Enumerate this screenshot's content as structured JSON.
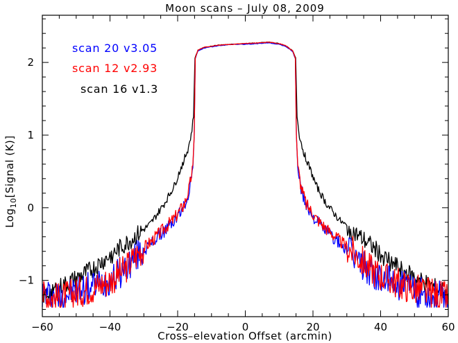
{
  "chart_data": {
    "type": "line",
    "title": "Moon scans  –  July 08, 2009",
    "xlabel": "Cross–elevation Offset (arcmin)",
    "ylabel_prefix": "Log",
    "ylabel_sub": "10",
    "ylabel_suffix": "[Signal (K)]",
    "xlim": [
      -60,
      60
    ],
    "ylim": [
      -1.5,
      2.65
    ],
    "grid": false,
    "legend_position": "top-left",
    "x_ticks": [
      -60,
      -40,
      -20,
      0,
      20,
      40,
      60
    ],
    "y_ticks": [
      -1,
      0,
      1,
      2
    ],
    "x_tick_labels": [
      "−60",
      "−40",
      "−20",
      "0",
      "20",
      "40",
      "60"
    ],
    "y_tick_labels": [
      "−1",
      "0",
      "1",
      "2"
    ],
    "series": [
      {
        "name": "scan 20 v3.05",
        "color": "#0000ff",
        "points": [
          [
            -60,
            -1.18
          ],
          [
            -55,
            -1.22
          ],
          [
            -50,
            -1.15
          ],
          [
            -45,
            -1.08
          ],
          [
            -40,
            -0.98
          ],
          [
            -36,
            -0.86
          ],
          [
            -32,
            -0.66
          ],
          [
            -28,
            -0.5
          ],
          [
            -24,
            -0.32
          ],
          [
            -21,
            -0.18
          ],
          [
            -18,
            0.02
          ],
          [
            -16.5,
            0.25
          ],
          [
            -15.5,
            0.55
          ],
          [
            -15.1,
            1.0
          ],
          [
            -14.8,
            2.05
          ],
          [
            -14,
            2.16
          ],
          [
            -12,
            2.2
          ],
          [
            -8,
            2.23
          ],
          [
            -4,
            2.25
          ],
          [
            0,
            2.25
          ],
          [
            4,
            2.26
          ],
          [
            7,
            2.27
          ],
          [
            10,
            2.25
          ],
          [
            12,
            2.22
          ],
          [
            14,
            2.15
          ],
          [
            14.8,
            2.05
          ],
          [
            15.1,
            1.0
          ],
          [
            15.5,
            0.55
          ],
          [
            16.5,
            0.25
          ],
          [
            18,
            0.02
          ],
          [
            21,
            -0.18
          ],
          [
            24,
            -0.32
          ],
          [
            28,
            -0.5
          ],
          [
            32,
            -0.66
          ],
          [
            36,
            -0.84
          ],
          [
            40,
            -0.97
          ],
          [
            45,
            -1.06
          ],
          [
            50,
            -1.14
          ],
          [
            55,
            -1.2
          ],
          [
            60,
            -1.25
          ]
        ]
      },
      {
        "name": "scan 12 v2.93",
        "color": "#ff0000",
        "points": [
          [
            -60,
            -1.2
          ],
          [
            -55,
            -1.25
          ],
          [
            -50,
            -1.17
          ],
          [
            -45,
            -1.1
          ],
          [
            -40,
            -1.0
          ],
          [
            -36,
            -0.87
          ],
          [
            -32,
            -0.64
          ],
          [
            -28,
            -0.47
          ],
          [
            -24,
            -0.29
          ],
          [
            -21,
            -0.15
          ],
          [
            -18,
            0.05
          ],
          [
            -16.5,
            0.28
          ],
          [
            -15.5,
            0.58
          ],
          [
            -15.1,
            1.0
          ],
          [
            -14.8,
            2.06
          ],
          [
            -14,
            2.17
          ],
          [
            -12,
            2.21
          ],
          [
            -8,
            2.24
          ],
          [
            -4,
            2.25
          ],
          [
            0,
            2.26
          ],
          [
            4,
            2.27
          ],
          [
            7,
            2.28
          ],
          [
            10,
            2.26
          ],
          [
            12,
            2.23
          ],
          [
            14,
            2.16
          ],
          [
            14.8,
            2.06
          ],
          [
            15.1,
            1.0
          ],
          [
            15.5,
            0.58
          ],
          [
            16.5,
            0.28
          ],
          [
            18,
            0.05
          ],
          [
            21,
            -0.15
          ],
          [
            24,
            -0.29
          ],
          [
            28,
            -0.46
          ],
          [
            32,
            -0.62
          ],
          [
            36,
            -0.8
          ],
          [
            40,
            -0.93
          ],
          [
            45,
            -1.04
          ],
          [
            50,
            -1.12
          ],
          [
            55,
            -1.18
          ],
          [
            60,
            -1.25
          ]
        ]
      },
      {
        "name": "scan 16 v1.3",
        "color": "#000000",
        "points": [
          [
            -60,
            -1.22
          ],
          [
            -55,
            -1.1
          ],
          [
            -50,
            -0.98
          ],
          [
            -45,
            -0.84
          ],
          [
            -40,
            -0.66
          ],
          [
            -36,
            -0.52
          ],
          [
            -32,
            -0.38
          ],
          [
            -28,
            -0.22
          ],
          [
            -24,
            0.05
          ],
          [
            -21,
            0.3
          ],
          [
            -19,
            0.55
          ],
          [
            -17,
            0.8
          ],
          [
            -16,
            1.0
          ],
          [
            -15.3,
            1.25
          ],
          [
            -14.9,
            2.06
          ],
          [
            -14,
            2.17
          ],
          [
            -12,
            2.21
          ],
          [
            -8,
            2.24
          ],
          [
            -4,
            2.25
          ],
          [
            0,
            2.26
          ],
          [
            4,
            2.27
          ],
          [
            7,
            2.28
          ],
          [
            10,
            2.26
          ],
          [
            12,
            2.23
          ],
          [
            14,
            2.16
          ],
          [
            14.9,
            2.06
          ],
          [
            15.3,
            1.25
          ],
          [
            16,
            1.0
          ],
          [
            17,
            0.8
          ],
          [
            19,
            0.55
          ],
          [
            21,
            0.3
          ],
          [
            24,
            0.05
          ],
          [
            28,
            -0.18
          ],
          [
            32,
            -0.34
          ],
          [
            36,
            -0.48
          ],
          [
            40,
            -0.64
          ],
          [
            45,
            -0.82
          ],
          [
            50,
            -0.96
          ],
          [
            55,
            -1.08
          ],
          [
            60,
            -1.18
          ]
        ]
      }
    ]
  }
}
